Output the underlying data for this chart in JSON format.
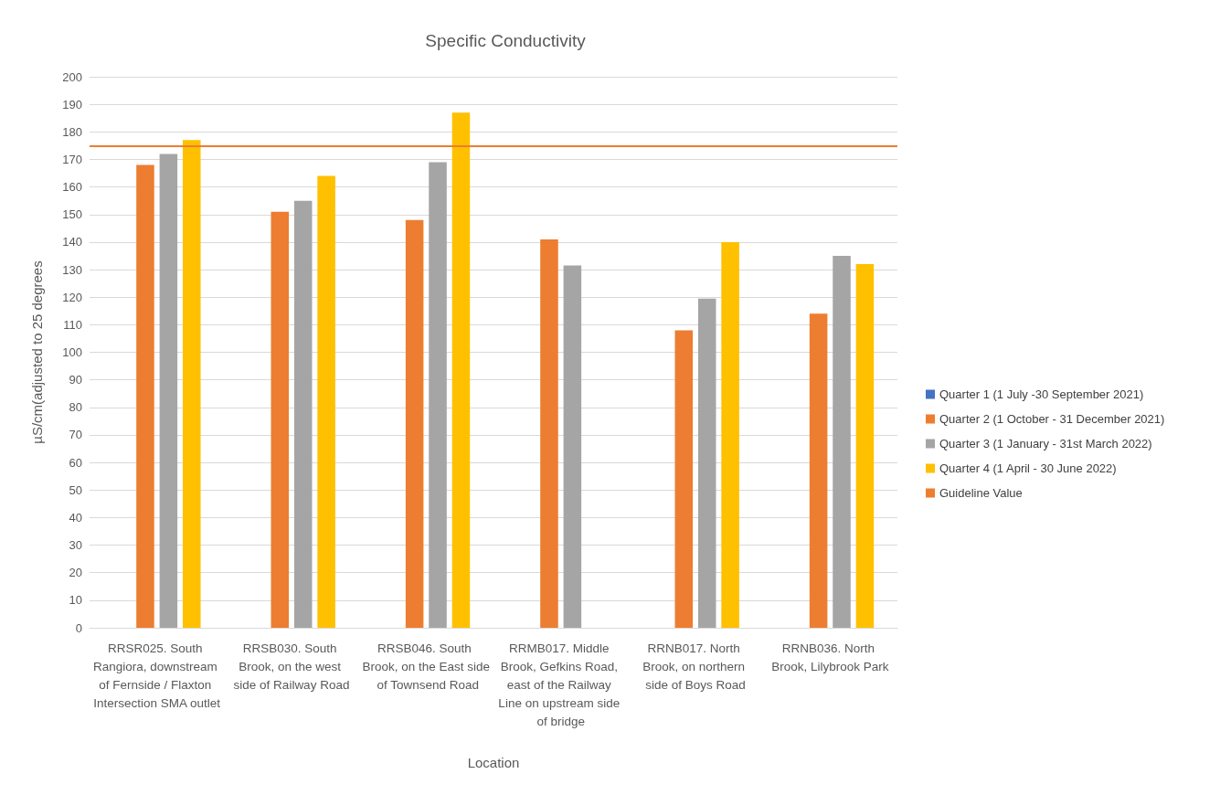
{
  "chart_data": {
    "type": "bar",
    "title": "Specific Conductivity",
    "xlabel": "Location",
    "ylabel": "µS/cm(adjusted to 25 degrees",
    "categories": [
      "RRSR025. South Rangiora, downstream of Fernside / Flaxton Intersection SMA outlet",
      "RRSB030. South Brook, on the west side of Railway Road",
      "RRSB046. South Brook, on the East side of Townsend Road",
      "RRMB017. Middle Brook, Gefkins Road, east of the Railway Line on upstream side of bridge",
      "RRNB017. North Brook, on northern side of Boys Road",
      "RRNB036. North Brook, Lilybrook Park"
    ],
    "series": [
      {
        "name": "Quarter 1 (1 July -30 September 2021)",
        "color": "#4472c4",
        "values": [
          null,
          null,
          null,
          null,
          null,
          null
        ]
      },
      {
        "name": "Quarter 2 (1 October - 31 December 2021)",
        "color": "#ed7d31",
        "values": [
          168,
          151,
          148,
          141,
          108,
          114
        ]
      },
      {
        "name": "Quarter 3 (1 January - 31st March 2022)",
        "color": "#a5a5a5",
        "values": [
          172,
          155,
          169,
          131.5,
          119.5,
          135
        ]
      },
      {
        "name": "Quarter 4 (1 April - 30 June 2022)",
        "color": "#ffc000",
        "values": [
          177,
          164,
          187,
          null,
          140,
          132
        ]
      }
    ],
    "ref_lines": [
      {
        "axis": "y",
        "value": 175,
        "label": "Guideline Value",
        "color": "#ed7d31"
      }
    ],
    "ylim": [
      0,
      200
    ],
    "yticks": [
      0,
      10,
      20,
      30,
      40,
      50,
      60,
      70,
      80,
      90,
      100,
      110,
      120,
      130,
      140,
      150,
      160,
      170,
      180,
      190,
      200
    ],
    "grid": "y",
    "legend": "right"
  }
}
